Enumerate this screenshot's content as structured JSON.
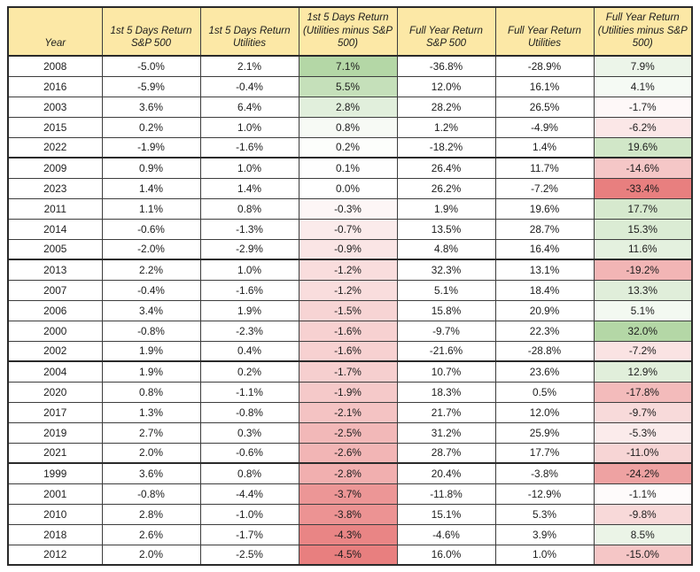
{
  "chart_data": {
    "type": "table",
    "columns": [
      {
        "label": "Year",
        "diff_colored": false
      },
      {
        "label": "1st 5 Days Return S&P 500",
        "diff_colored": false
      },
      {
        "label": "1st 5 Days Return Utilities",
        "diff_colored": false
      },
      {
        "label": "1st 5 Days Return (Utilities minus S&P 500)",
        "diff_colored": true
      },
      {
        "label": "Full Year Return S&P 500",
        "diff_colored": false
      },
      {
        "label": "Full Year Return Utilities",
        "diff_colored": false
      },
      {
        "label": "Full Year Return (Utilities minus S&P 500)",
        "diff_colored": true
      }
    ],
    "rows": [
      [
        "2008",
        "-5.0%",
        "2.1%",
        "7.1%",
        "-36.8%",
        "-28.9%",
        "7.9%"
      ],
      [
        "2016",
        "-5.9%",
        "-0.4%",
        "5.5%",
        "12.0%",
        "16.1%",
        "4.1%"
      ],
      [
        "2003",
        "3.6%",
        "6.4%",
        "2.8%",
        "28.2%",
        "26.5%",
        "-1.7%"
      ],
      [
        "2015",
        "0.2%",
        "1.0%",
        "0.8%",
        "1.2%",
        "-4.9%",
        "-6.2%"
      ],
      [
        "2022",
        "-1.9%",
        "-1.6%",
        "0.2%",
        "-18.2%",
        "1.4%",
        "19.6%"
      ],
      [
        "2009",
        "0.9%",
        "1.0%",
        "0.1%",
        "26.4%",
        "11.7%",
        "-14.6%"
      ],
      [
        "2023",
        "1.4%",
        "1.4%",
        "0.0%",
        "26.2%",
        "-7.2%",
        "-33.4%"
      ],
      [
        "2011",
        "1.1%",
        "0.8%",
        "-0.3%",
        "1.9%",
        "19.6%",
        "17.7%"
      ],
      [
        "2014",
        "-0.6%",
        "-1.3%",
        "-0.7%",
        "13.5%",
        "28.7%",
        "15.3%"
      ],
      [
        "2005",
        "-2.0%",
        "-2.9%",
        "-0.9%",
        "4.8%",
        "16.4%",
        "11.6%"
      ],
      [
        "2013",
        "2.2%",
        "1.0%",
        "-1.2%",
        "32.3%",
        "13.1%",
        "-19.2%"
      ],
      [
        "2007",
        "-0.4%",
        "-1.6%",
        "-1.2%",
        "5.1%",
        "18.4%",
        "13.3%"
      ],
      [
        "2006",
        "3.4%",
        "1.9%",
        "-1.5%",
        "15.8%",
        "20.9%",
        "5.1%"
      ],
      [
        "2000",
        "-0.8%",
        "-2.3%",
        "-1.6%",
        "-9.7%",
        "22.3%",
        "32.0%"
      ],
      [
        "2002",
        "1.9%",
        "0.4%",
        "-1.6%",
        "-21.6%",
        "-28.8%",
        "-7.2%"
      ],
      [
        "2004",
        "1.9%",
        "0.2%",
        "-1.7%",
        "10.7%",
        "23.6%",
        "12.9%"
      ],
      [
        "2020",
        "0.8%",
        "-1.1%",
        "-1.9%",
        "18.3%",
        "0.5%",
        "-17.8%"
      ],
      [
        "2017",
        "1.3%",
        "-0.8%",
        "-2.1%",
        "21.7%",
        "12.0%",
        "-9.7%"
      ],
      [
        "2019",
        "2.7%",
        "0.3%",
        "-2.5%",
        "31.2%",
        "25.9%",
        "-5.3%"
      ],
      [
        "2021",
        "2.0%",
        "-0.6%",
        "-2.6%",
        "28.7%",
        "17.7%",
        "-11.0%"
      ],
      [
        "1999",
        "3.6%",
        "0.8%",
        "-2.8%",
        "20.4%",
        "-3.8%",
        "-24.2%"
      ],
      [
        "2001",
        "-0.8%",
        "-4.4%",
        "-3.7%",
        "-11.8%",
        "-12.9%",
        "-1.1%"
      ],
      [
        "2010",
        "2.8%",
        "-1.0%",
        "-3.8%",
        "15.1%",
        "5.3%",
        "-9.8%"
      ],
      [
        "2018",
        "2.6%",
        "-1.7%",
        "-4.3%",
        "-4.6%",
        "3.9%",
        "8.5%"
      ],
      [
        "2012",
        "2.0%",
        "-2.5%",
        "-4.5%",
        "16.0%",
        "1.0%",
        "-15.0%"
      ]
    ],
    "layout_hints": {
      "row_group_size": 5,
      "conditional_format": "per-column 2-sided linear scale on diff columns"
    },
    "colors": {
      "header_bg": "#fce8a6",
      "scale_positive_max": "#b4d7a6",
      "scale_zero": "#ffffff",
      "scale_negative_min": "#e87f7f"
    }
  }
}
